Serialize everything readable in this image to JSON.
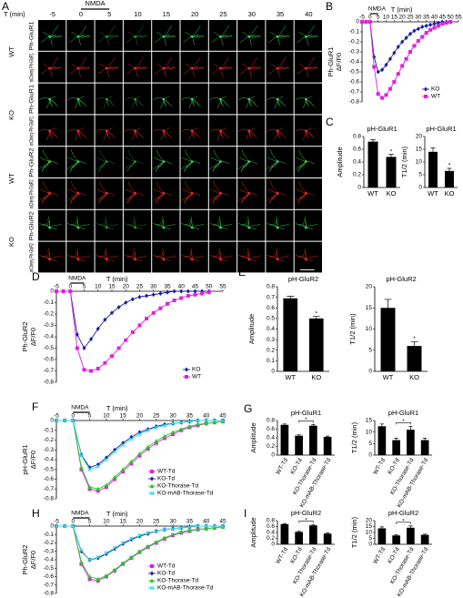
{
  "image_grid": {
    "panel": "A",
    "time_label": "T (min)",
    "columns": [
      -5,
      0,
      5,
      10,
      15,
      20,
      25,
      30,
      35,
      40
    ],
    "stimulus": {
      "text": "NMDA",
      "columns": [
        0,
        5
      ]
    },
    "groups": [
      {
        "label": "WT",
        "rows": [
          "Ph-GluR1",
          "mCherry Ph-GluR1"
        ]
      },
      {
        "label": "KO",
        "rows": [
          "Ph-GluR1",
          "mCherry Ph-GluR1"
        ]
      },
      {
        "label": "WT",
        "rows": [
          "Ph-GluR2",
          "mCherry Ph-GluR2"
        ]
      },
      {
        "label": "KO",
        "rows": [
          "Ph-GluR2",
          "mCherry Ph-GluR2"
        ]
      }
    ]
  },
  "chart_data": [
    {
      "type": "line",
      "panel": "B",
      "xlabel": "T (min)",
      "ylabel": [
        "Ph-GluR1",
        "ΔF/F0"
      ],
      "annotation": {
        "text": "NMDA",
        "x": [
          0,
          5
        ]
      },
      "x": [
        -5,
        -2.5,
        0,
        2.5,
        5,
        7.5,
        10,
        12.5,
        15,
        17.5,
        20,
        22.5,
        25,
        27.5,
        30,
        32.5,
        35,
        37.5,
        40,
        42.5,
        45,
        47.5,
        50
      ],
      "xlim": [
        -5,
        55
      ],
      "xticks": [
        -5,
        0,
        5,
        10,
        15,
        20,
        25,
        30,
        35,
        40,
        45,
        50,
        55
      ],
      "ylim": [
        -0.8,
        0
      ],
      "yticks": [
        0,
        -0.1,
        -0.2,
        -0.3,
        -0.4,
        -0.5,
        -0.6,
        -0.7,
        -0.8
      ],
      "legend": "lower right",
      "series": [
        {
          "name": "KO",
          "color": "#1c1c9c",
          "marker": "diamond",
          "values": [
            0,
            0,
            0,
            -0.35,
            -0.5,
            -0.48,
            -0.43,
            -0.37,
            -0.31,
            -0.25,
            -0.2,
            -0.16,
            -0.12,
            -0.09,
            -0.07,
            -0.05,
            -0.04,
            -0.03,
            -0.02,
            -0.01,
            0,
            0,
            0
          ]
        },
        {
          "name": "WT",
          "color": "#e020e0",
          "marker": "square",
          "values": [
            0,
            0,
            0,
            -0.45,
            -0.72,
            -0.76,
            -0.73,
            -0.67,
            -0.6,
            -0.52,
            -0.44,
            -0.37,
            -0.3,
            -0.24,
            -0.19,
            -0.15,
            -0.11,
            -0.08,
            -0.06,
            -0.04,
            -0.02,
            -0.01,
            0
          ]
        }
      ]
    },
    {
      "type": "bar",
      "panel": "C",
      "title": "pH-GluR1",
      "ylabel": "Amplitude",
      "categories": [
        "WT",
        "KO"
      ],
      "values": [
        0.72,
        0.48
      ],
      "errors": [
        0.03,
        0.04
      ],
      "color": "#000000",
      "ylim": [
        0,
        0.8
      ],
      "yticks": [
        0,
        0.2,
        0.4,
        0.6,
        0.8
      ],
      "star": {
        "text": "*",
        "over": [
          "KO"
        ]
      }
    },
    {
      "type": "bar",
      "title": "pH-GluR1",
      "ylabel": "T1/2 (min)",
      "categories": [
        "WT",
        "KO"
      ],
      "values": [
        14,
        6.5
      ],
      "errors": [
        1.5,
        1
      ],
      "color": "#000000",
      "ylim": [
        0,
        20
      ],
      "yticks": [
        0,
        5,
        10,
        15,
        20
      ],
      "star": {
        "text": "*",
        "over": [
          "KO"
        ]
      }
    },
    {
      "type": "line",
      "panel": "D",
      "xlabel": "T (min)",
      "ylabel": [
        "Ph-GluR2",
        "ΔF/F0"
      ],
      "annotation": {
        "text": "NMDA",
        "x": [
          0,
          5
        ]
      },
      "x": [
        -5,
        -2.5,
        0,
        2.5,
        5,
        7.5,
        10,
        12.5,
        15,
        17.5,
        20,
        22.5,
        25,
        27.5,
        30,
        32.5,
        35,
        37.5,
        40,
        42.5,
        45,
        47.5,
        50
      ],
      "xlim": [
        -5,
        55
      ],
      "xticks": [
        -5,
        0,
        5,
        10,
        15,
        20,
        25,
        30,
        35,
        40,
        45,
        50,
        55
      ],
      "ylim": [
        -0.8,
        0
      ],
      "yticks": [
        0,
        -0.1,
        -0.2,
        -0.3,
        -0.4,
        -0.5,
        -0.6,
        -0.7,
        -0.8
      ],
      "legend": "lower right",
      "series": [
        {
          "name": "KO",
          "color": "#1c1c9c",
          "marker": "diamond",
          "values": [
            0,
            0,
            0,
            -0.38,
            -0.5,
            -0.42,
            -0.33,
            -0.25,
            -0.19,
            -0.14,
            -0.1,
            -0.07,
            -0.05,
            -0.04,
            -0.03,
            -0.02,
            -0.01,
            0,
            0,
            0,
            0,
            0,
            0
          ]
        },
        {
          "name": "WT",
          "color": "#e020e0",
          "marker": "square",
          "values": [
            0,
            0,
            0,
            -0.5,
            -0.69,
            -0.7,
            -0.68,
            -0.63,
            -0.57,
            -0.5,
            -0.43,
            -0.36,
            -0.3,
            -0.24,
            -0.19,
            -0.15,
            -0.11,
            -0.08,
            -0.06,
            -0.04,
            -0.03,
            -0.02,
            -0.01
          ]
        }
      ]
    },
    {
      "type": "bar",
      "panel": "E",
      "title": "pH-GluR2",
      "ylabel": "Amplitude",
      "categories": [
        "WT",
        "KO"
      ],
      "values": [
        0.69,
        0.5
      ],
      "errors": [
        0.02,
        0.02
      ],
      "color": "#000000",
      "ylim": [
        0,
        0.8
      ],
      "yticks": [
        0,
        0.1,
        0.2,
        0.3,
        0.4,
        0.5,
        0.6,
        0.7,
        0.8
      ],
      "star": {
        "text": "*",
        "over": [
          "KO"
        ]
      }
    },
    {
      "type": "bar",
      "title": "pH-GluR2",
      "ylabel": "T1/2 (min)",
      "categories": [
        "WT",
        "KO"
      ],
      "values": [
        15,
        6
      ],
      "errors": [
        2,
        1
      ],
      "color": "#000000",
      "ylim": [
        0,
        20
      ],
      "yticks": [
        0,
        5,
        10,
        15,
        20
      ],
      "star": {
        "text": "*",
        "over": [
          "KO"
        ]
      }
    },
    {
      "type": "line",
      "panel": "F",
      "xlabel": "T (min)",
      "ylabel": [
        "pH-GluR1",
        "ΔF/F0"
      ],
      "annotation": {
        "text": "NMDA",
        "x": [
          0,
          5
        ]
      },
      "x": [
        -5,
        -2.5,
        0,
        2.5,
        5,
        7.5,
        10,
        12.5,
        15,
        17.5,
        20,
        22.5,
        25,
        27.5,
        30,
        32.5,
        35,
        37.5,
        40,
        42.5,
        45
      ],
      "xlim": [
        -5,
        45
      ],
      "xticks": [
        -5,
        0,
        5,
        10,
        15,
        20,
        25,
        30,
        35,
        40,
        45
      ],
      "ylim": [
        -0.8,
        0
      ],
      "yticks": [
        0,
        -0.1,
        -0.2,
        -0.3,
        -0.4,
        -0.5,
        -0.6,
        -0.7,
        -0.8
      ],
      "legend": "lower right",
      "series": [
        {
          "name": "WT-Td",
          "color": "#e020e0",
          "marker": "square",
          "values": [
            0,
            0,
            0,
            -0.5,
            -0.7,
            -0.72,
            -0.68,
            -0.6,
            -0.52,
            -0.44,
            -0.36,
            -0.29,
            -0.23,
            -0.18,
            -0.14,
            -0.1,
            -0.07,
            -0.05,
            -0.03,
            -0.02,
            -0.01
          ]
        },
        {
          "name": "KO-Td",
          "color": "#1c1c9c",
          "marker": "diamond",
          "values": [
            0,
            0,
            0,
            -0.35,
            -0.48,
            -0.45,
            -0.38,
            -0.3,
            -0.23,
            -0.17,
            -0.12,
            -0.09,
            -0.06,
            -0.04,
            -0.03,
            -0.02,
            -0.01,
            0,
            0,
            0,
            0
          ]
        },
        {
          "name": "KO-Thorase-Td",
          "color": "#22cc22",
          "marker": "triangle",
          "values": [
            0,
            0,
            0,
            -0.48,
            -0.68,
            -0.7,
            -0.66,
            -0.58,
            -0.5,
            -0.42,
            -0.34,
            -0.27,
            -0.21,
            -0.16,
            -0.12,
            -0.09,
            -0.06,
            -0.04,
            -0.03,
            -0.02,
            -0.01
          ]
        },
        {
          "name": "KO-mAB-Thorase-Td",
          "color": "#33d8e0",
          "marker": "x",
          "values": [
            0,
            0,
            0,
            -0.36,
            -0.5,
            -0.47,
            -0.4,
            -0.32,
            -0.25,
            -0.19,
            -0.14,
            -0.1,
            -0.07,
            -0.05,
            -0.03,
            -0.02,
            -0.01,
            0,
            0,
            0,
            0
          ]
        }
      ]
    },
    {
      "type": "bar",
      "panel": "G",
      "title": "pH-GluR1",
      "ylabel": "Amplitude",
      "categories": [
        "WT-Td",
        "KO-Td",
        "KO-Thorase-Td",
        "KO-mAB-Thorase-Td"
      ],
      "values": [
        0.7,
        0.45,
        0.68,
        0.42
      ],
      "errors": [
        0.02,
        0.02,
        0.03,
        0.02
      ],
      "color": "#000000",
      "ylim": [
        0,
        0.8
      ],
      "yticks": [
        0,
        0.2,
        0.4,
        0.6,
        0.8
      ],
      "star": {
        "text": "*",
        "over": [
          "KO-Td",
          "KO-Thorase-Td"
        ]
      }
    },
    {
      "type": "bar",
      "title": "pH-GluR1",
      "ylabel": "T1/2 (min)",
      "categories": [
        "WT-Td",
        "KO-Td",
        "KO-Thorase-Td",
        "KO-mAB-Thorase-Td"
      ],
      "values": [
        12.5,
        6.5,
        11,
        6.5
      ],
      "errors": [
        1,
        0.8,
        1.5,
        0.8
      ],
      "color": "#000000",
      "ylim": [
        0,
        15
      ],
      "yticks": [
        0,
        5,
        10,
        15
      ],
      "star": {
        "text": "*",
        "over": [
          "KO-Td",
          "KO-Thorase-Td"
        ]
      }
    },
    {
      "type": "line",
      "panel": "H",
      "xlabel": "T (min)",
      "ylabel": [
        "Ph-GluR2",
        "ΔF/F0"
      ],
      "annotation": {
        "text": "NMDA",
        "x": [
          0,
          5
        ]
      },
      "x": [
        -5,
        -2.5,
        0,
        2.5,
        5,
        7.5,
        10,
        12.5,
        15,
        17.5,
        20,
        22.5,
        25,
        27.5,
        30,
        32.5,
        35,
        37.5,
        40,
        42.5,
        45
      ],
      "xlim": [
        -5,
        45
      ],
      "xticks": [
        -5,
        0,
        5,
        10,
        15,
        20,
        25,
        30,
        35,
        40,
        45
      ],
      "ylim": [
        -0.8,
        0
      ],
      "yticks": [
        0,
        -0.1,
        -0.2,
        -0.3,
        -0.4,
        -0.5,
        -0.6,
        -0.7,
        -0.8
      ],
      "legend": "lower right",
      "series": [
        {
          "name": "WT-Td",
          "color": "#e020e0",
          "marker": "square",
          "values": [
            0,
            0,
            0,
            -0.45,
            -0.63,
            -0.65,
            -0.6,
            -0.53,
            -0.45,
            -0.38,
            -0.31,
            -0.25,
            -0.2,
            -0.15,
            -0.11,
            -0.08,
            -0.06,
            -0.04,
            -0.03,
            -0.02,
            -0.01
          ]
        },
        {
          "name": "KO-Td",
          "color": "#1c1c9c",
          "marker": "diamond",
          "values": [
            0,
            0,
            0,
            -0.3,
            -0.4,
            -0.38,
            -0.33,
            -0.27,
            -0.21,
            -0.16,
            -0.12,
            -0.09,
            -0.06,
            -0.04,
            -0.03,
            -0.02,
            -0.01,
            0,
            0,
            0,
            0
          ]
        },
        {
          "name": "KO-Thorase-Td",
          "color": "#22cc22",
          "marker": "triangle",
          "values": [
            0,
            0,
            0,
            -0.43,
            -0.6,
            -0.63,
            -0.59,
            -0.52,
            -0.44,
            -0.37,
            -0.3,
            -0.24,
            -0.19,
            -0.14,
            -0.1,
            -0.07,
            -0.05,
            -0.04,
            -0.03,
            -0.02,
            -0.01
          ]
        },
        {
          "name": "KO-mAB-Thorase-Td",
          "color": "#33d8e0",
          "marker": "x",
          "values": [
            0,
            0,
            0,
            -0.29,
            -0.4,
            -0.37,
            -0.32,
            -0.26,
            -0.2,
            -0.15,
            -0.11,
            -0.08,
            -0.06,
            -0.04,
            -0.03,
            -0.02,
            -0.01,
            0,
            0,
            0,
            0
          ]
        }
      ]
    },
    {
      "type": "bar",
      "panel": "I",
      "title": "pH-GluR2",
      "ylabel": "Amplitude",
      "categories": [
        "WT-Td",
        "KO-Td",
        "KO-Thorase-Td",
        "KO-mAB-Thorase-Td"
      ],
      "values": [
        0.68,
        0.42,
        0.64,
        0.36
      ],
      "errors": [
        0.02,
        0.02,
        0.02,
        0.02
      ],
      "color": "#000000",
      "ylim": [
        0,
        0.8
      ],
      "yticks": [
        0,
        0.2,
        0.4,
        0.6,
        0.8
      ],
      "star": {
        "text": "*",
        "over": [
          "KO-Td",
          "KO-Thorase-Td"
        ]
      }
    },
    {
      "type": "bar",
      "title": "pH-GluR2",
      "ylabel": "T1/2 (min)",
      "categories": [
        "WT-Td",
        "KO-Td",
        "KO-Thorase-Td",
        "KO-mAB-Thorase-Td"
      ],
      "values": [
        13.5,
        7.5,
        14,
        8
      ],
      "errors": [
        1.2,
        0.8,
        1.5,
        0.6
      ],
      "color": "#000000",
      "ylim": [
        0,
        20
      ],
      "yticks": [
        0,
        5,
        10,
        15,
        20
      ],
      "star": {
        "text": "*",
        "over": [
          "KO-Td",
          "KO-Thorase-Td"
        ]
      }
    }
  ]
}
